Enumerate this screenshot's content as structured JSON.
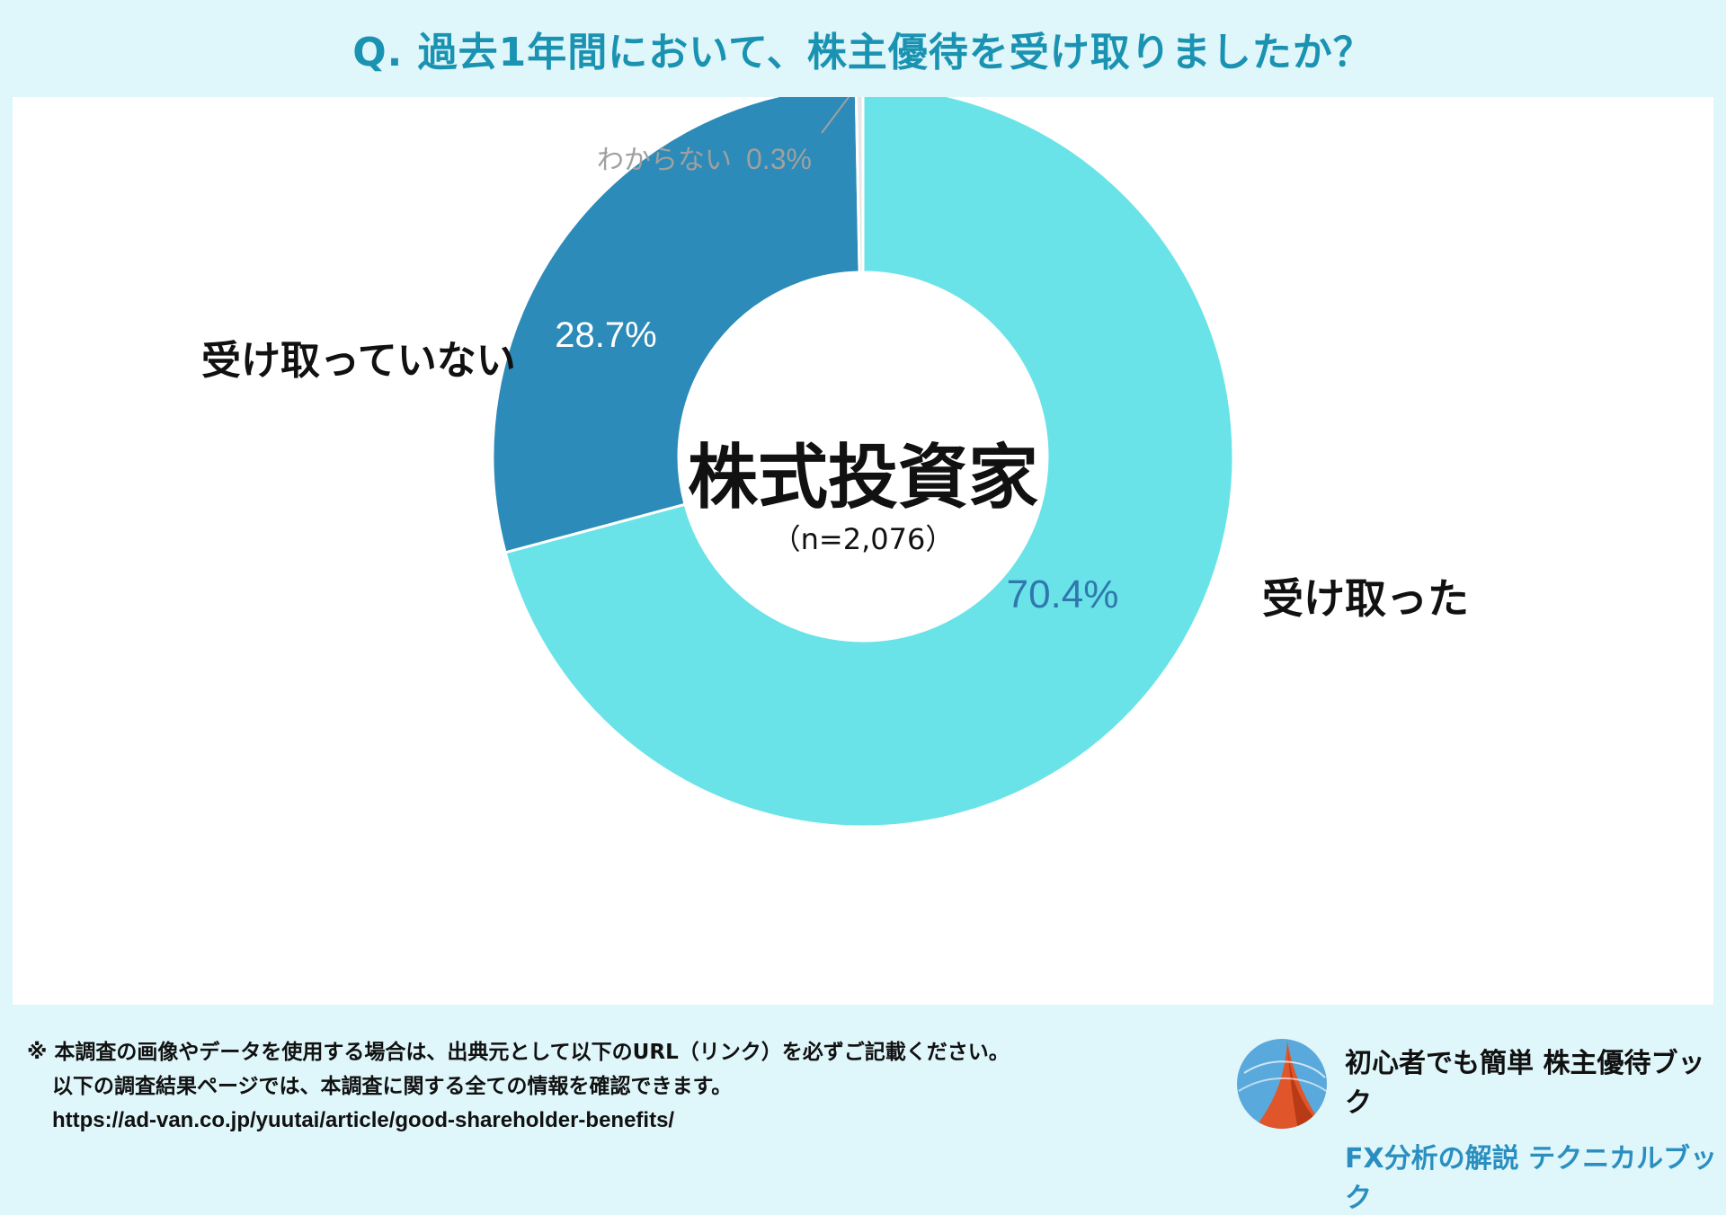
{
  "title": "Q. 過去1年間において、株主優待を受け取りましたか？",
  "chart_data": {
    "type": "pie",
    "variant": "donut",
    "center_label": "株式投資家",
    "center_sublabel": "（n=2,076）",
    "slices": [
      {
        "label": "受け取った",
        "value": 70.4,
        "value_label": "70.4%",
        "color": "#6ae3e8",
        "value_color": "#2f77ad"
      },
      {
        "label": "わからない",
        "value": 0.3,
        "value_label": "0.3%",
        "color": "#e6e6e6",
        "value_color": "#a0a0a0"
      },
      {
        "label": "受け取っていない",
        "value": 28.7,
        "value_label": "28.7%",
        "color": "#2c8bb8",
        "value_color": "#ffffff"
      }
    ],
    "slice_order_clockwise_from_top": [
      "受け取った",
      "受け取っていない",
      "わからない"
    ],
    "label_prefix_small": "わからない",
    "label_small_value": "0.3%"
  },
  "footer": {
    "note_line1": "※ 本調査の画像やデータを使用する場合は、出典元として以下のURL（リンク）を必ずご記載ください。",
    "note_line2": "以下の調査結果ページでは、本調査に関する全ての情報を確認できます。",
    "url": "https://ad-van.co.jp/yuutai/article/good-shareholder-benefits/"
  },
  "brand": {
    "line1": "初心者でも簡単  株主優待ブック",
    "line2": "FX分析の解説  テクニカルブック",
    "logo_icon": "globe-mountain-icon"
  }
}
